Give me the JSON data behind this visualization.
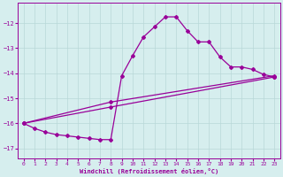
{
  "xlabel": "Windchill (Refroidissement éolien,°C)",
  "bg_color": "#d6eeee",
  "grid_color": "#b8d8d8",
  "line_color": "#990099",
  "xlim": [
    -0.5,
    23.5
  ],
  "ylim": [
    -17.4,
    -11.2
  ],
  "xticks": [
    0,
    1,
    2,
    3,
    4,
    5,
    6,
    7,
    8,
    9,
    10,
    11,
    12,
    13,
    14,
    15,
    16,
    17,
    18,
    19,
    20,
    21,
    22,
    23
  ],
  "yticks": [
    -17,
    -16,
    -15,
    -14,
    -13,
    -12
  ],
  "curve1_x": [
    0,
    1,
    2,
    3,
    4,
    5,
    6,
    7,
    8,
    9,
    10,
    11,
    12,
    13,
    14,
    15,
    16,
    17,
    18,
    19,
    20,
    21,
    22,
    23
  ],
  "curve1_y": [
    -16.0,
    -16.2,
    -16.35,
    -16.45,
    -16.5,
    -16.55,
    -16.6,
    -16.65,
    -16.65,
    -14.1,
    -13.3,
    -12.55,
    -12.15,
    -11.75,
    -11.75,
    -12.3,
    -12.75,
    -12.75,
    -13.35,
    -13.75,
    -13.75,
    -13.85,
    -14.05,
    -14.15
  ],
  "curve2_x": [
    0,
    8,
    23
  ],
  "curve2_y": [
    -16.0,
    -15.15,
    -14.1
  ],
  "curve3_x": [
    0,
    8,
    23
  ],
  "curve3_y": [
    -16.0,
    -15.35,
    -14.15
  ]
}
